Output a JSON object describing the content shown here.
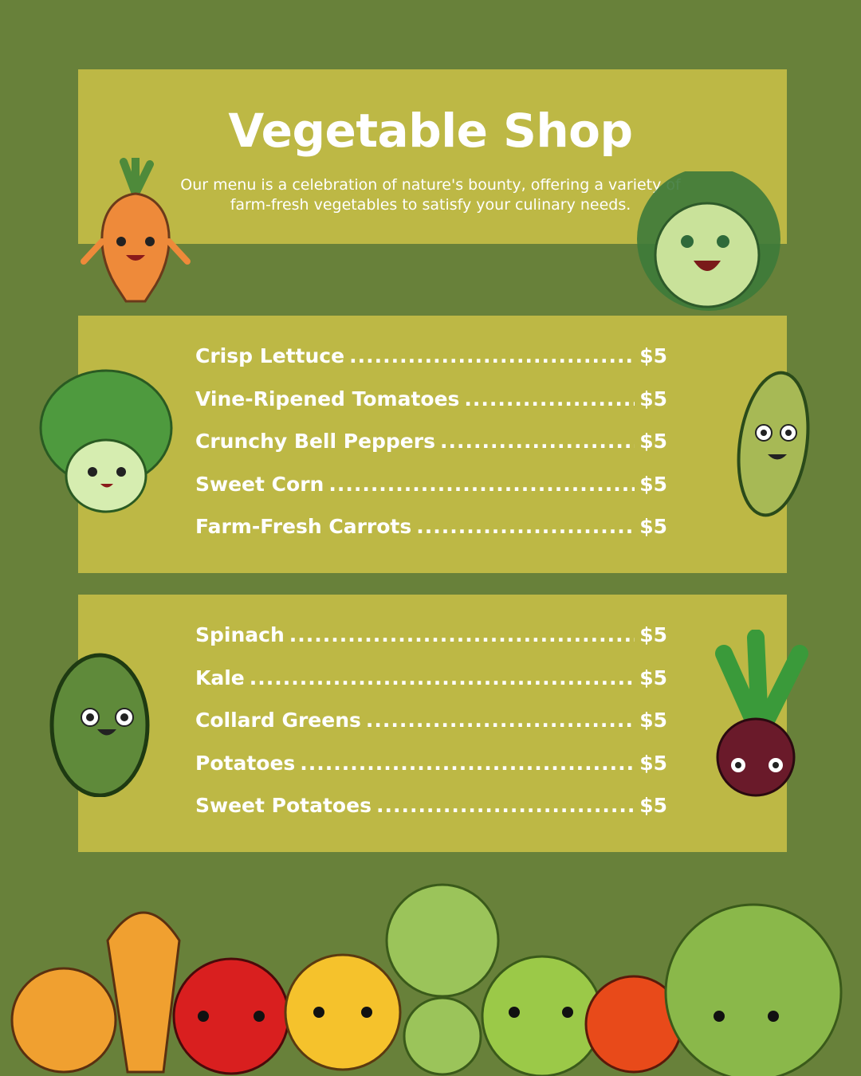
{
  "header": {
    "title": "Vegetable Shop",
    "subtitle": "Our menu is a celebration of nature's bounty, offering a variety of farm-fresh vegetables to satisfy your culinary needs."
  },
  "menu_sections": [
    {
      "items": [
        {
          "name": "Crisp Lettuce",
          "price": "$5"
        },
        {
          "name": "Vine-Ripened Tomatoes",
          "price": "$5"
        },
        {
          "name": "Crunchy Bell Peppers",
          "price": "$5"
        },
        {
          "name": "Sweet Corn",
          "price": "$5"
        },
        {
          "name": "Farm-Fresh Carrots",
          "price": "$5"
        }
      ]
    },
    {
      "items": [
        {
          "name": "Spinach",
          "price": "$5"
        },
        {
          "name": "Kale",
          "price": "$5"
        },
        {
          "name": "Collard Greens",
          "price": "$5"
        },
        {
          "name": "Potatoes",
          "price": "$5"
        },
        {
          "name": "Sweet Potatoes",
          "price": "$5"
        }
      ]
    }
  ],
  "colors": {
    "background": "#68813a",
    "panel": "#bdb845",
    "text": "#ffffff"
  },
  "illustrations": [
    "carrot-character",
    "cabbage-character",
    "lettuce-character",
    "cucumber-character",
    "zucchini-character",
    "beet-character",
    "vegetable-row"
  ]
}
